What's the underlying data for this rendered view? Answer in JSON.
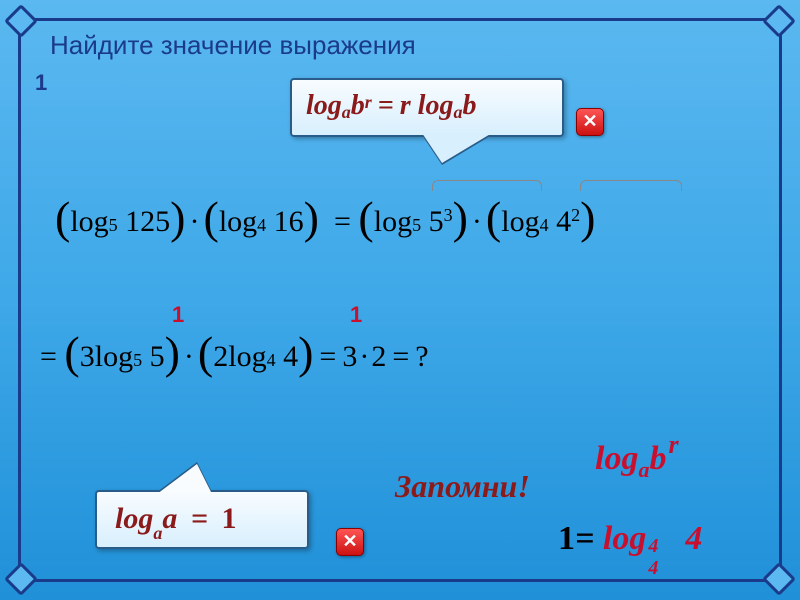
{
  "title": "Найдите значение выражения",
  "problem_number": "1",
  "formula_top": {
    "lhs": "log",
    "sub_a": "a",
    "var_b": "b",
    "sup_r": "r",
    "eq": "=",
    "coef_r": "r",
    "rhs_log": "log",
    "colors": {
      "text": "#8b1a1a"
    }
  },
  "close_icon": "✕",
  "eq1": {
    "lparen": "(",
    "rparen": ")",
    "log": "log",
    "sub5": "5",
    "v125": "125",
    "dot": "·",
    "sub4": "4",
    "v16": "16",
    "eq": "=",
    "five": "5",
    "sup3": "3",
    "four": "4",
    "sup2": "2"
  },
  "eq2": {
    "eq": "=",
    "lparen": "(",
    "rparen": ")",
    "c3": "3",
    "log": "log",
    "sub5": "5",
    "five": "5",
    "dot": "·",
    "c2": "2",
    "sub4": "4",
    "four": "4",
    "three": "3",
    "two": "2",
    "q": "?"
  },
  "ones": {
    "a": "1",
    "b": "1"
  },
  "formula_bottom": {
    "log": "log",
    "sub_a": "a",
    "var_a": "a",
    "eq": "=",
    "one": "1"
  },
  "remember": "Запомни!",
  "logabr": {
    "log": "log",
    "a": "a",
    "b": "b",
    "r": "r"
  },
  "bottom_right": {
    "one": "1",
    "eq": "=",
    "log": "log",
    "a_sub": "4",
    "a_sup": "4",
    "tail": "4"
  },
  "colors": {
    "accent_blue": "#1a3a8a",
    "accent_red": "#c8102e",
    "dark_red": "#8b1a1a",
    "background_top": "#5bb8f0",
    "background_bottom": "#2090d8"
  }
}
